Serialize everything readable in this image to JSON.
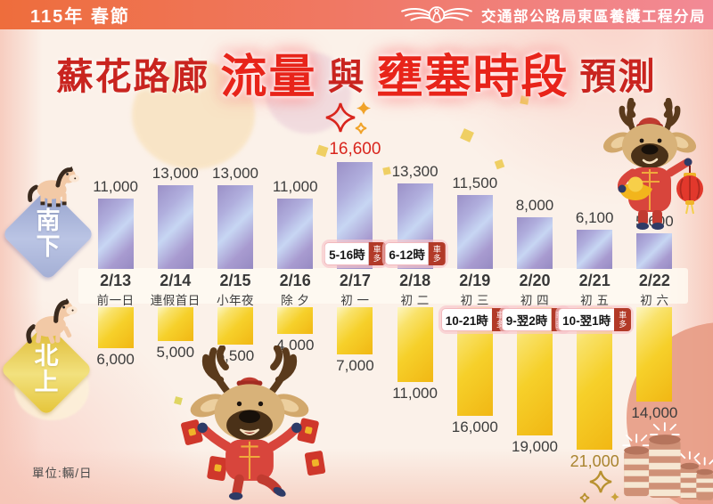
{
  "header": {
    "left_title": "115年 春節",
    "org_name": "交通部公路局東區養護工程分局",
    "logo": "highway-bureau-wings-logo"
  },
  "title": {
    "parts": [
      "蘇花路廊",
      "流量",
      "與",
      "壅塞時段",
      "預測"
    ]
  },
  "directions": {
    "south": "南下",
    "north": "北上"
  },
  "unit_label": "單位:輛/日",
  "chart_data": {
    "type": "bar",
    "title": "蘇花路廊 流量 與 壅塞時段 預測",
    "unit": "輛/日",
    "layout": "mirrored vertical bars; southbound above shared date axis, northbound hanging below",
    "categories": [
      {
        "date": "2/13",
        "label": "前一日"
      },
      {
        "date": "2/14",
        "label": "連假首日"
      },
      {
        "date": "2/15",
        "label": "小年夜"
      },
      {
        "date": "2/16",
        "label": "除 夕"
      },
      {
        "date": "2/17",
        "label": "初 一"
      },
      {
        "date": "2/18",
        "label": "初 二"
      },
      {
        "date": "2/19",
        "label": "初 三"
      },
      {
        "date": "2/20",
        "label": "初 四"
      },
      {
        "date": "2/21",
        "label": "初 五"
      },
      {
        "date": "2/22",
        "label": "初 六"
      }
    ],
    "series": [
      {
        "name": "南下",
        "direction": "south",
        "values": [
          11000,
          13000,
          13000,
          11000,
          16600,
          13300,
          11500,
          8000,
          6100,
          5600
        ],
        "highlight_index": 4
      },
      {
        "name": "北上",
        "direction": "north",
        "values": [
          6000,
          5000,
          5500,
          4000,
          7000,
          11000,
          16000,
          19000,
          21000,
          14000
        ],
        "highlight_index": 8
      }
    ],
    "congestion_badges": [
      {
        "column_index": 4,
        "direction": "south",
        "time": "5-16時",
        "tag": "車多"
      },
      {
        "column_index": 5,
        "direction": "south",
        "time": "6-12時",
        "tag": "車多"
      },
      {
        "column_index": 6,
        "direction": "north",
        "time": "10-21時",
        "tag": "車多"
      },
      {
        "column_index": 7,
        "direction": "north",
        "time": "9-翌2時",
        "tag": "車多"
      },
      {
        "column_index": 8,
        "direction": "north",
        "time": "10-翌1時",
        "tag": "車多"
      }
    ]
  },
  "colors": {
    "header_gradient": [
      "#ee6d3c",
      "#f28a96"
    ],
    "title_red": "#c9241f",
    "title_glow_red": "#e8241a",
    "south_bar": [
      "#9b90c7",
      "#c7d6f3"
    ],
    "north_bar": [
      "#fdf6c2",
      "#f1b714"
    ],
    "value_highlight_red": "#d9251d",
    "value_highlight_gold": "#a9842f",
    "badge_tag_red": "#b23a28",
    "south_diamond": "#9aa6cf",
    "north_diamond": "#e7c93e"
  },
  "decorations": [
    "horse-on-south-diamond",
    "horse-on-north-diamond",
    "sparkle-stars-red-above-peak",
    "sparkle-stars-gold-below-peak",
    "reindeer-with-gold-ingot-and-lantern",
    "jumping-reindeer-with-red-envelopes",
    "firecrackers",
    "gold-confetti"
  ]
}
